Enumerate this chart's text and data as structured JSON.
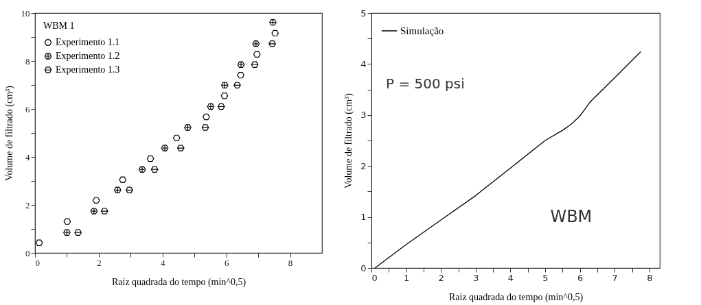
{
  "chart_data": [
    {
      "type": "scatter",
      "xlabel": "Raiz quadrada do tempo (min^0,5)",
      "ylabel": "Volume de filtrado (cm³)",
      "legend_title": "WBM 1",
      "legend": "top left",
      "grid": false,
      "xlim": [
        0,
        9
      ],
      "xticks": [
        0,
        {
          "value": 1,
          "label": null
        },
        2,
        {
          "value": 3,
          "label": null
        },
        4,
        {
          "value": 5,
          "label": null
        },
        6,
        {
          "value": 7,
          "label": null
        },
        8
      ],
      "ylim": [
        0,
        10
      ],
      "yticks": [
        0,
        {
          "value": 1,
          "label": null
        },
        2,
        {
          "value": 3,
          "label": null
        },
        4,
        {
          "value": 5,
          "label": null
        },
        6,
        {
          "value": 7,
          "label": null
        },
        8,
        {
          "value": 9,
          "label": null
        },
        10
      ],
      "series": [
        {
          "name": "Experimento 1.1",
          "color": "#000000",
          "x": [
            0.13,
            1.01,
            1.92,
            2.75,
            3.62,
            4.44,
            5.37,
            5.94,
            6.45,
            6.96,
            7.53
          ],
          "values": [
            0.42,
            1.31,
            2.19,
            3.05,
            3.93,
            4.79,
            5.67,
            6.55,
            7.41,
            8.28,
            9.16
          ]
        },
        {
          "name": "Experimento 1.2",
          "color": "#000000",
          "x": [
            1.0,
            1.85,
            2.59,
            3.36,
            4.07,
            4.79,
            5.51,
            5.95,
            6.46,
            6.93,
            7.46
          ],
          "values": [
            0.85,
            1.74,
            2.62,
            3.48,
            4.37,
            5.23,
            6.1,
            6.99,
            7.85,
            8.72,
            9.61
          ]
        },
        {
          "name": "Experimento 1.3",
          "color": "#000000",
          "x": [
            1.35,
            2.18,
            2.96,
            3.75,
            4.57,
            5.34,
            5.84,
            6.34,
            6.89,
            7.44
          ],
          "values": [
            0.85,
            1.74,
            2.62,
            3.48,
            4.37,
            5.23,
            6.1,
            6.99,
            7.85,
            8.72
          ]
        }
      ]
    },
    {
      "type": "line",
      "xlabel": "Raiz quadrada do tempo (min^0,5)",
      "ylabel": "Volume de filtrado (cm³)",
      "legend": "top left",
      "grid": false,
      "xlim": [
        0,
        8.3
      ],
      "xticks": [
        0,
        {
          "value": 0.5,
          "label": null
        },
        1,
        {
          "value": 1.5,
          "label": null
        },
        2,
        {
          "value": 2.5,
          "label": null
        },
        3,
        {
          "value": 3.5,
          "label": null
        },
        4,
        {
          "value": 4.5,
          "label": null
        },
        5,
        {
          "value": 5.5,
          "label": null
        },
        6,
        {
          "value": 6.5,
          "label": null
        },
        7,
        {
          "value": 7.5,
          "label": null
        },
        8
      ],
      "ylim": [
        0,
        5
      ],
      "yticks": [
        0,
        {
          "value": 0.5,
          "label": null
        },
        1,
        {
          "value": 1.5,
          "label": null
        },
        2,
        {
          "value": 2.5,
          "label": null
        },
        3,
        {
          "value": 3.5,
          "label": null
        },
        4,
        {
          "value": 4.5,
          "label": null
        },
        5
      ],
      "annotations": [
        "P = 500 psi",
        "WBM"
      ],
      "series": [
        {
          "name": "Simulação",
          "color": "#000000",
          "x": [
            0.1,
            1,
            2,
            3,
            4,
            5,
            5.5,
            5.75,
            6,
            6.3,
            7,
            7.75
          ],
          "values": [
            0,
            0.46,
            0.94,
            1.42,
            1.96,
            2.5,
            2.7,
            2.82,
            2.98,
            3.26,
            3.73,
            4.24
          ]
        }
      ]
    }
  ]
}
